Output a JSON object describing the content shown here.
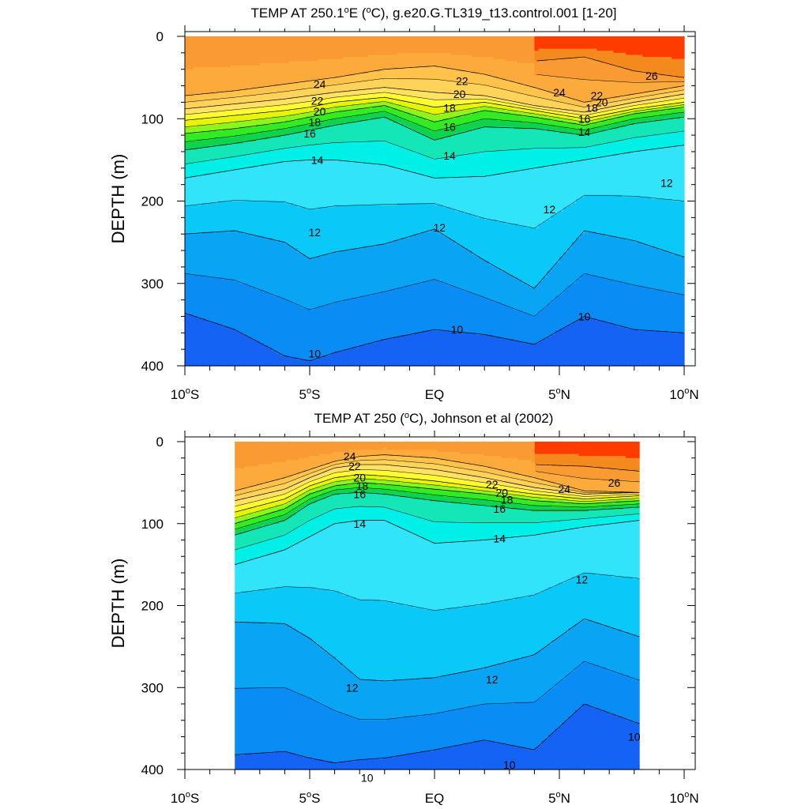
{
  "chart_data": [
    {
      "type": "heatmap",
      "subtype": "filled-contour",
      "title": "TEMP AT 250.1",
      "title_degree_mark": "o",
      "title_rest": "E (",
      "title_unit_mark": "o",
      "title_tail": "C), g.e20.G.TL319_t13.control.001 [1-20]",
      "ylabel": "DEPTH (m)",
      "xlabel": "",
      "xlim": [
        -10,
        10
      ],
      "ylim": [
        400,
        0
      ],
      "data_xlim": [
        -10,
        10
      ],
      "x_ticks": [
        {
          "value": -10,
          "num": "10",
          "sup": "o",
          "hemi": "S"
        },
        {
          "value": -5,
          "num": "5",
          "sup": "o",
          "hemi": "S"
        },
        {
          "value": 0,
          "num": "EQ",
          "sup": "",
          "hemi": ""
        },
        {
          "value": 5,
          "num": "5",
          "sup": "o",
          "hemi": "N"
        },
        {
          "value": 10,
          "num": "10",
          "sup": "o",
          "hemi": "N"
        }
      ],
      "y_ticks": [
        "0",
        "100",
        "200",
        "300",
        "400"
      ],
      "y_tick_values": [
        0,
        100,
        200,
        300,
        400
      ],
      "x": [
        -10,
        -8,
        -6,
        -5,
        -4,
        -2,
        0,
        2,
        4,
        6,
        8,
        10
      ],
      "isotherms": [
        {
          "level": 26,
          "depth": [
            null,
            null,
            null,
            null,
            null,
            null,
            null,
            null,
            30,
            25,
            42,
            50
          ]
        },
        {
          "level": 24,
          "depth": [
            72,
            66,
            58,
            54,
            50,
            40,
            36,
            46,
            62,
            80,
            70,
            60
          ]
        },
        {
          "level": 22,
          "depth": [
            88,
            82,
            76,
            72,
            68,
            62,
            68,
            72,
            84,
            92,
            80,
            70
          ]
        },
        {
          "level": 20,
          "depth": [
            102,
            96,
            90,
            86,
            80,
            74,
            86,
            80,
            90,
            100,
            88,
            80
          ]
        },
        {
          "level": 18,
          "depth": [
            118,
            112,
            104,
            98,
            92,
            84,
            104,
            90,
            98,
            108,
            94,
            86
          ]
        },
        {
          "level": 16,
          "depth": [
            138,
            130,
            120,
            114,
            108,
            98,
            126,
            110,
            112,
            120,
            106,
            98
          ]
        },
        {
          "level": 14,
          "depth": [
            172,
            162,
            152,
            150,
            150,
            156,
            172,
            170,
            160,
            150,
            140,
            132
          ]
        },
        {
          "level": 12,
          "depth": [
            240,
            236,
            250,
            270,
            262,
            252,
            234,
            272,
            306,
            236,
            248,
            268
          ]
        },
        {
          "level": 10,
          "depth": [
            336,
            356,
            388,
            394,
            384,
            368,
            356,
            362,
            374,
            340,
            356,
            360
          ]
        }
      ],
      "contour_labels": [
        {
          "text": "24",
          "x": -4.6,
          "y": 58
        },
        {
          "text": "22",
          "x": -4.7,
          "y": 78
        },
        {
          "text": "20",
          "x": -4.6,
          "y": 91
        },
        {
          "text": "18",
          "x": -4.8,
          "y": 104
        },
        {
          "text": "16",
          "x": -5.0,
          "y": 118
        },
        {
          "text": "14",
          "x": -4.7,
          "y": 150
        },
        {
          "text": "12",
          "x": -4.8,
          "y": 238
        },
        {
          "text": "10",
          "x": -4.8,
          "y": 385
        },
        {
          "text": "22",
          "x": 1.1,
          "y": 54
        },
        {
          "text": "20",
          "x": 1.0,
          "y": 70
        },
        {
          "text": "18",
          "x": 0.6,
          "y": 87
        },
        {
          "text": "16",
          "x": 0.6,
          "y": 110
        },
        {
          "text": "14",
          "x": 0.6,
          "y": 145
        },
        {
          "text": "12",
          "x": 0.2,
          "y": 232
        },
        {
          "text": "10",
          "x": 0.9,
          "y": 356
        },
        {
          "text": "24",
          "x": 5.0,
          "y": 68
        },
        {
          "text": "22",
          "x": 6.5,
          "y": 72
        },
        {
          "text": "20",
          "x": 6.7,
          "y": 80
        },
        {
          "text": "18",
          "x": 6.3,
          "y": 87
        },
        {
          "text": "16",
          "x": 6.0,
          "y": 100
        },
        {
          "text": "14",
          "x": 6.0,
          "y": 116
        },
        {
          "text": "12",
          "x": 4.6,
          "y": 210
        },
        {
          "text": "12",
          "x": 9.3,
          "y": 178
        },
        {
          "text": "10",
          "x": 6.0,
          "y": 340
        },
        {
          "text": "26",
          "x": 8.7,
          "y": 48
        }
      ]
    },
    {
      "type": "heatmap",
      "subtype": "filled-contour",
      "title": "TEMP AT 250 (",
      "title_unit_mark": "o",
      "title_tail": "C), Johnson et al (2002)",
      "ylabel": "DEPTH (m)",
      "xlabel": "",
      "xlim": [
        -10,
        10
      ],
      "ylim": [
        400,
        0
      ],
      "data_xlim": [
        -8,
        8.2
      ],
      "x_ticks": [
        {
          "value": -10,
          "num": "10",
          "sup": "o",
          "hemi": "S"
        },
        {
          "value": -5,
          "num": "5",
          "sup": "o",
          "hemi": "S"
        },
        {
          "value": 0,
          "num": "EQ",
          "sup": "",
          "hemi": ""
        },
        {
          "value": 5,
          "num": "5",
          "sup": "o",
          "hemi": "N"
        },
        {
          "value": 10,
          "num": "10",
          "sup": "o",
          "hemi": "N"
        }
      ],
      "y_ticks": [
        "0",
        "100",
        "200",
        "300",
        "400"
      ],
      "y_tick_values": [
        0,
        100,
        200,
        300,
        400
      ],
      "x": [
        -8,
        -6,
        -5,
        -4,
        -3,
        -2,
        0,
        2,
        4,
        6,
        8.2
      ],
      "isotherms": [
        {
          "level": 26,
          "depth": [
            null,
            null,
            null,
            null,
            null,
            null,
            null,
            null,
            28,
            30,
            36
          ]
        },
        {
          "level": 24,
          "depth": [
            60,
            44,
            34,
            24,
            18,
            16,
            20,
            30,
            44,
            60,
            62
          ]
        },
        {
          "level": 22,
          "depth": [
            72,
            58,
            44,
            32,
            28,
            28,
            34,
            44,
            56,
            64,
            62
          ]
        },
        {
          "level": 20,
          "depth": [
            86,
            70,
            54,
            44,
            40,
            42,
            48,
            56,
            64,
            70,
            66
          ]
        },
        {
          "level": 18,
          "depth": [
            100,
            82,
            64,
            54,
            50,
            52,
            58,
            64,
            72,
            76,
            72
          ]
        },
        {
          "level": 16,
          "depth": [
            114,
            96,
            76,
            64,
            62,
            64,
            72,
            78,
            84,
            84,
            80
          ]
        },
        {
          "level": 14,
          "depth": [
            150,
            132,
            116,
            100,
            96,
            96,
            124,
            120,
            114,
            104,
            96
          ]
        },
        {
          "level": 12,
          "depth": [
            220,
            222,
            240,
            264,
            290,
            292,
            288,
            276,
            260,
            216,
            238
          ]
        },
        {
          "level": 10,
          "depth": [
            382,
            378,
            386,
            392,
            388,
            386,
            376,
            364,
            376,
            320,
            344
          ]
        }
      ],
      "contour_labels": [
        {
          "text": "24",
          "x": -3.4,
          "y": 18
        },
        {
          "text": "22",
          "x": -3.2,
          "y": 30
        },
        {
          "text": "20",
          "x": -3.0,
          "y": 44
        },
        {
          "text": "18",
          "x": -2.9,
          "y": 54
        },
        {
          "text": "16",
          "x": -3.0,
          "y": 64
        },
        {
          "text": "14",
          "x": -3.0,
          "y": 100
        },
        {
          "text": "12",
          "x": -3.3,
          "y": 300
        },
        {
          "text": "10",
          "x": -2.7,
          "y": 410
        },
        {
          "text": "22",
          "x": 2.3,
          "y": 52
        },
        {
          "text": "20",
          "x": 2.7,
          "y": 62
        },
        {
          "text": "18",
          "x": 2.9,
          "y": 71
        },
        {
          "text": "16",
          "x": 2.6,
          "y": 82
        },
        {
          "text": "14",
          "x": 2.6,
          "y": 118
        },
        {
          "text": "24",
          "x": 5.2,
          "y": 58
        },
        {
          "text": "26",
          "x": 7.2,
          "y": 50
        },
        {
          "text": "12",
          "x": 2.3,
          "y": 290
        },
        {
          "text": "12",
          "x": 5.9,
          "y": 168
        },
        {
          "text": "10",
          "x": 3.0,
          "y": 394
        },
        {
          "text": "10",
          "x": 8.0,
          "y": 360
        }
      ]
    }
  ],
  "colors": {
    "levels": [
      {
        "min": -100,
        "max": 10,
        "color": "#1563f5"
      },
      {
        "min": 10,
        "max": 11,
        "color": "#0a8cf5"
      },
      {
        "min": 11,
        "max": 12,
        "color": "#0aa4f5"
      },
      {
        "min": 12,
        "max": 13,
        "color": "#0ac8f7"
      },
      {
        "min": 13,
        "max": 14,
        "color": "#32e4fa"
      },
      {
        "min": 14,
        "max": 15,
        "color": "#00f0e8"
      },
      {
        "min": 15,
        "max": 16,
        "color": "#14e6b8"
      },
      {
        "min": 16,
        "max": 17,
        "color": "#0fd24d"
      },
      {
        "min": 17,
        "max": 18,
        "color": "#32eb23"
      },
      {
        "min": 18,
        "max": 19,
        "color": "#8cf51e"
      },
      {
        "min": 19,
        "max": 20,
        "color": "#e6f508"
      },
      {
        "min": 20,
        "max": 21,
        "color": "#fffb32"
      },
      {
        "min": 21,
        "max": 22,
        "color": "#ffe164"
      },
      {
        "min": 22,
        "max": 23,
        "color": "#ffd25a"
      },
      {
        "min": 23,
        "max": 24,
        "color": "#ffc24a"
      },
      {
        "min": 24,
        "max": 25,
        "color": "#fcaa3c"
      },
      {
        "min": 25,
        "max": 26,
        "color": "#fa9a32"
      },
      {
        "min": 26,
        "max": 27,
        "color": "#f48a1e"
      },
      {
        "min": 27,
        "max": 100,
        "color": "#ff3c00"
      }
    ]
  }
}
